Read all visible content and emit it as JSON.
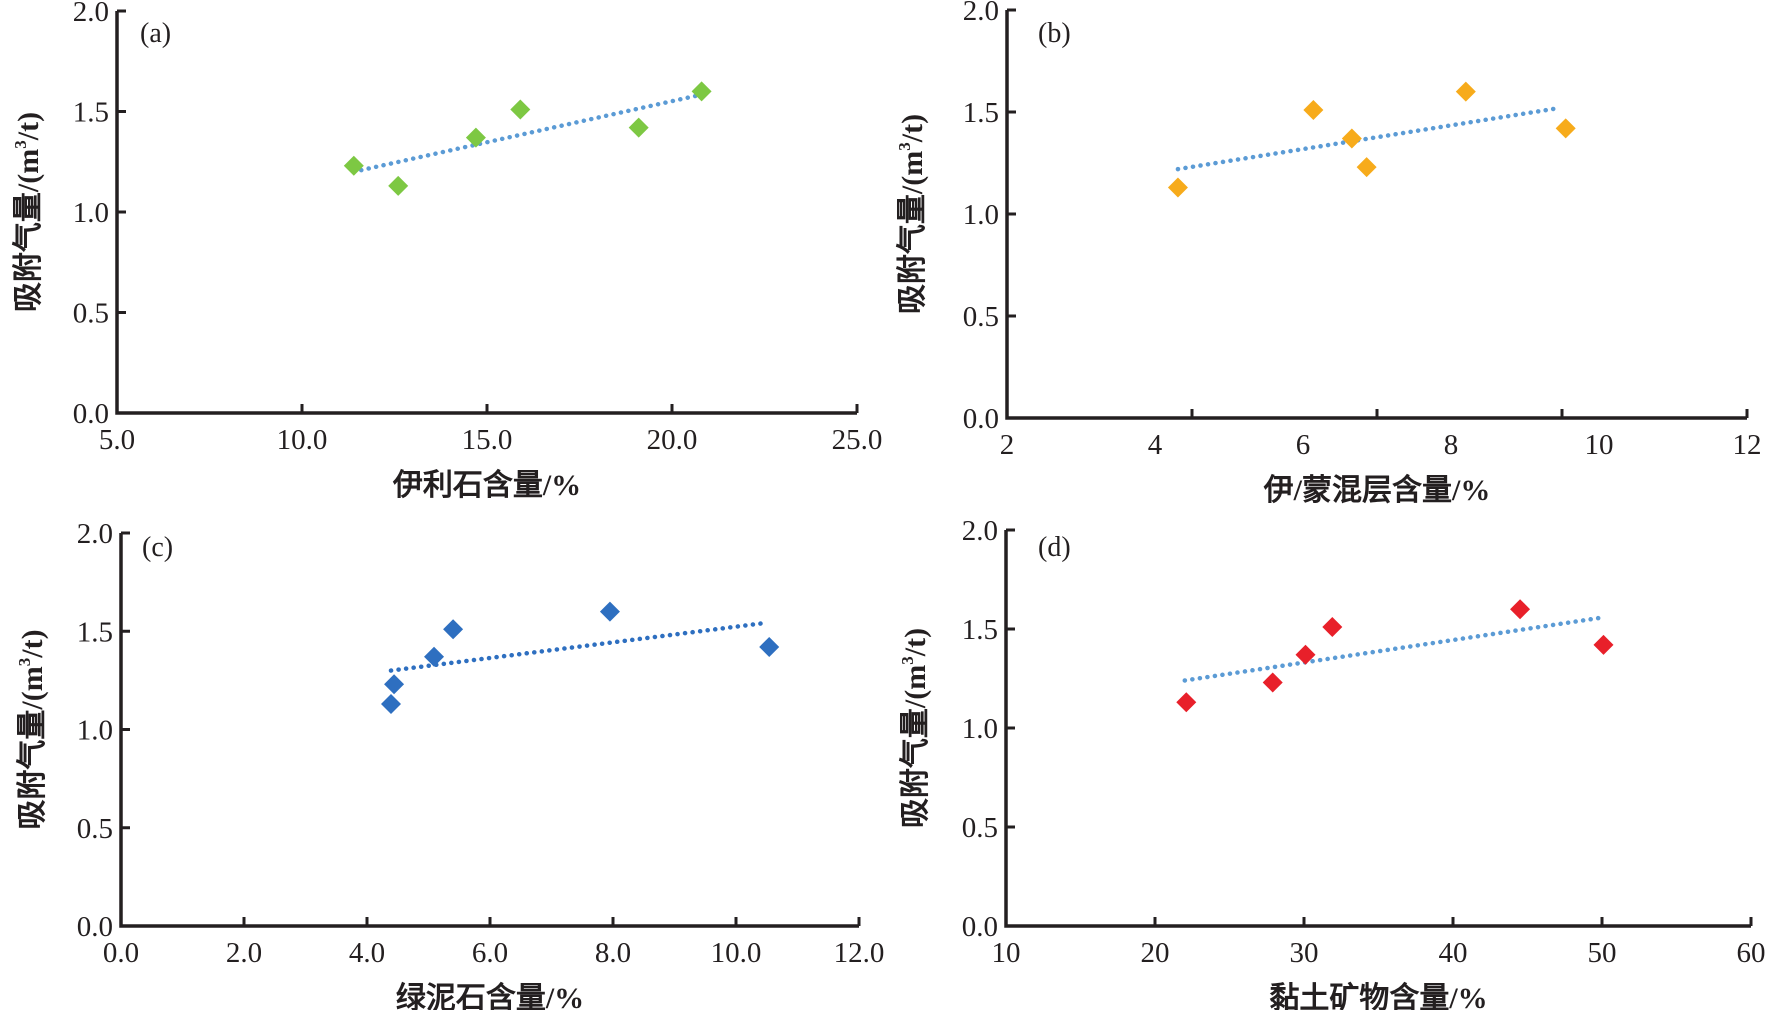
{
  "figure": {
    "y_label_main": "吸附气量/(m",
    "y_label_sup": "3",
    "y_label_tail": "/t)"
  },
  "chart_data": [
    {
      "type": "scatter",
      "panel": "(a)",
      "xlabel": "伊利石含量/%",
      "ylabel": "吸附气量/(m3/t)",
      "xlim": [
        5,
        25
      ],
      "ylim": [
        0,
        2.0
      ],
      "x_ticks": [
        5,
        10,
        15,
        20,
        25
      ],
      "x_tick_labels": [
        "5.0",
        "10.0",
        "15.0",
        "20.0",
        "25.0"
      ],
      "y_ticks": [
        0,
        0.5,
        1.0,
        1.5,
        2.0
      ],
      "y_tick_labels": [
        "0.0",
        "0.5",
        "1.0",
        "1.5",
        "2.0"
      ],
      "marker": "diamond",
      "color": "#7dc843",
      "trend_color": "#5b9bd5",
      "points": [
        {
          "x": 11.4,
          "y": 1.23
        },
        {
          "x": 12.6,
          "y": 1.13
        },
        {
          "x": 14.7,
          "y": 1.37
        },
        {
          "x": 15.9,
          "y": 1.51
        },
        {
          "x": 19.1,
          "y": 1.42
        },
        {
          "x": 20.8,
          "y": 1.6
        }
      ],
      "trendline": {
        "type": "linear",
        "x": [
          11.4,
          20.7
        ],
        "y": [
          1.2,
          1.58
        ]
      },
      "grid": false,
      "legend": "none"
    },
    {
      "type": "scatter",
      "panel": "(b)",
      "xlabel": "伊/蒙混层含量/%",
      "ylabel": "吸附气量/(m3/t)",
      "xlim": [
        2,
        12
      ],
      "ylim": [
        0,
        2.0
      ],
      "x_ticks": [
        2,
        4.5,
        7,
        9.5,
        12
      ],
      "x_tick_labels": [
        "2",
        "4",
        "6",
        "8",
        "10",
        "12"
      ],
      "x_label_values": [
        2,
        4,
        6,
        8,
        10,
        12
      ],
      "y_ticks": [
        0,
        0.5,
        1.0,
        1.5,
        2.0
      ],
      "y_tick_labels": [
        "0.0",
        "0.5",
        "1.0",
        "1.5",
        "2.0"
      ],
      "marker": "diamond",
      "color": "#f7ab1b",
      "trend_color": "#5b9bd5",
      "points": [
        {
          "x": 4.31,
          "y": 1.13
        },
        {
          "x": 6.14,
          "y": 1.51
        },
        {
          "x": 6.66,
          "y": 1.37
        },
        {
          "x": 6.86,
          "y": 1.23
        },
        {
          "x": 8.2,
          "y": 1.6
        },
        {
          "x": 9.55,
          "y": 1.42
        }
      ],
      "trendline": {
        "type": "linear",
        "x": [
          4.31,
          9.47
        ],
        "y": [
          1.22,
          1.52
        ]
      },
      "grid": false,
      "legend": "none"
    },
    {
      "type": "scatter",
      "panel": "(c)",
      "xlabel": "绿泥石含量/%",
      "ylabel": "吸附气量/(m3/t)",
      "xlim": [
        0,
        12
      ],
      "ylim": [
        0,
        2.0
      ],
      "x_ticks": [
        0,
        2,
        4,
        6,
        8,
        10,
        12
      ],
      "x_tick_labels": [
        "0.0",
        "2.0",
        "4.0",
        "6.0",
        "8.0",
        "10.0",
        "12.0"
      ],
      "y_ticks": [
        0,
        0.5,
        1.0,
        1.5,
        2.0
      ],
      "y_tick_labels": [
        "0.0",
        "0.5",
        "1.0",
        "1.5",
        "2.0"
      ],
      "marker": "diamond",
      "color": "#2e6fc0",
      "trend_color": "#2e6fc0",
      "points": [
        {
          "x": 4.39,
          "y": 1.13
        },
        {
          "x": 4.44,
          "y": 1.23
        },
        {
          "x": 5.09,
          "y": 1.37
        },
        {
          "x": 5.4,
          "y": 1.51
        },
        {
          "x": 7.95,
          "y": 1.6
        },
        {
          "x": 10.54,
          "y": 1.42
        }
      ],
      "trendline": {
        "type": "linear",
        "x": [
          4.39,
          10.42
        ],
        "y": [
          1.3,
          1.54
        ]
      },
      "grid": false,
      "legend": "none"
    },
    {
      "type": "scatter",
      "panel": "(d)",
      "xlabel": "黏土矿物含量/%",
      "ylabel": "吸附气量/(m3/t)",
      "xlim": [
        10,
        60
      ],
      "ylim": [
        0,
        2.0
      ],
      "x_ticks": [
        10,
        20,
        30,
        40,
        50,
        60
      ],
      "x_tick_labels": [
        "10",
        "20",
        "30",
        "40",
        "50",
        "60"
      ],
      "y_ticks": [
        0,
        0.5,
        1.0,
        1.5,
        2.0
      ],
      "y_tick_labels": [
        "0.0",
        "0.5",
        "1.0",
        "1.5",
        "2.0"
      ],
      "marker": "diamond",
      "color": "#e8202a",
      "trend_color": "#5b9bd5",
      "points": [
        {
          "x": 22.1,
          "y": 1.13
        },
        {
          "x": 27.9,
          "y": 1.23
        },
        {
          "x": 30.1,
          "y": 1.37
        },
        {
          "x": 31.9,
          "y": 1.51
        },
        {
          "x": 44.5,
          "y": 1.6
        },
        {
          "x": 50.1,
          "y": 1.42
        }
      ],
      "trendline": {
        "type": "linear",
        "x": [
          22.0,
          50.2
        ],
        "y": [
          1.24,
          1.56
        ]
      },
      "grid": false,
      "legend": "none"
    }
  ]
}
